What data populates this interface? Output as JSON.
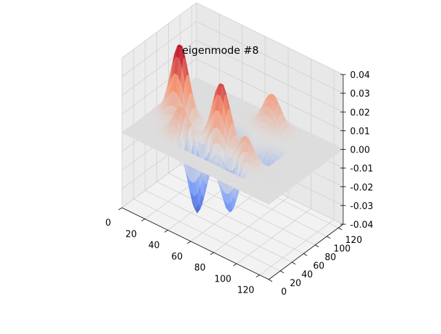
{
  "chart_data": {
    "type": "surface3d",
    "title": "eigenmode #8",
    "colormap": "coolwarm",
    "x_ticks": [
      "0",
      "20",
      "40",
      "60",
      "80",
      "100",
      "120"
    ],
    "y_ticks": [
      "0",
      "20",
      "40",
      "60",
      "80",
      "100",
      "120"
    ],
    "z_ticks": [
      "-0.04",
      "-0.03",
      "-0.02",
      "-0.01",
      "0.00",
      "0.01",
      "0.02",
      "0.03",
      "0.04"
    ],
    "xlim": [
      0,
      128
    ],
    "ylim": [
      0,
      128
    ],
    "zlim": [
      -0.04,
      0.04
    ],
    "grid": true,
    "peaks": [
      {
        "x": 20,
        "y": 60,
        "z": 0.04
      },
      {
        "x": 60,
        "y": 52,
        "z": 0.033
      },
      {
        "x": 35,
        "y": 35,
        "z": 0.018
      },
      {
        "x": 85,
        "y": 40,
        "z": 0.02
      },
      {
        "x": 75,
        "y": 110,
        "z": 0.018
      }
    ],
    "troughs": [
      {
        "x": 50,
        "y": 30,
        "z": -0.036
      },
      {
        "x": 80,
        "y": 30,
        "z": -0.03
      },
      {
        "x": 55,
        "y": 75,
        "z": -0.015
      },
      {
        "x": 95,
        "y": 70,
        "z": -0.018
      }
    ],
    "mode_region": {
      "x": [
        0,
        100
      ],
      "y": [
        20,
        128
      ]
    }
  }
}
